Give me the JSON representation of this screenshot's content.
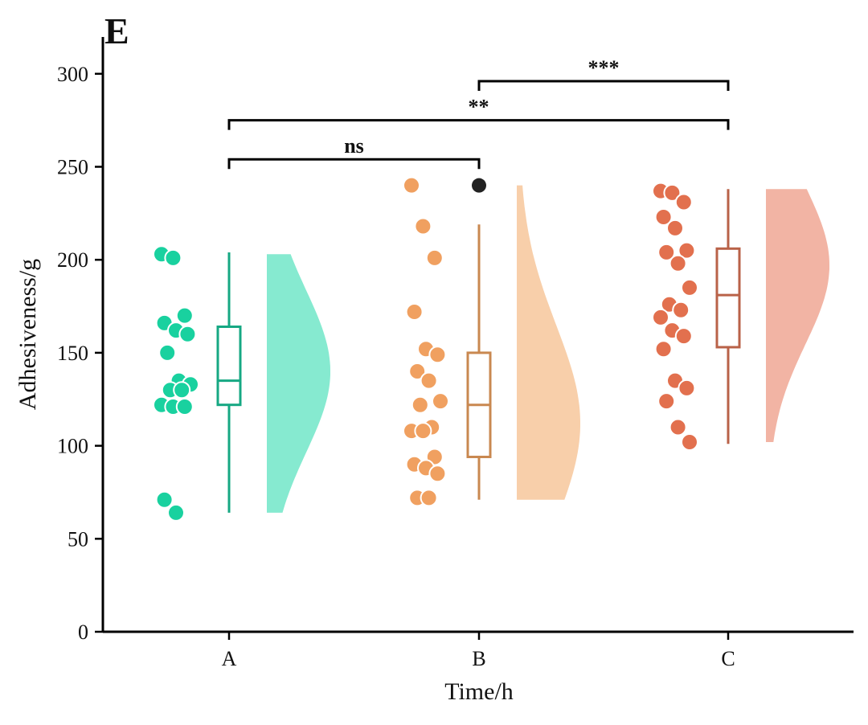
{
  "chart_data": {
    "type": "raincloud",
    "panel_label": "E",
    "xlabel": "Time/h",
    "ylabel": "Adhesiveness/g",
    "ylim": [
      0,
      320
    ],
    "yticks": [
      0,
      50,
      100,
      150,
      200,
      250,
      300
    ],
    "categories": [
      "A",
      "B",
      "C"
    ],
    "groups": [
      {
        "name": "A",
        "color_points": "#19d19f",
        "color_box": "#16a883",
        "color_cloud": "#86ead0",
        "points": [
          203,
          201,
          170,
          166,
          162,
          160,
          150,
          135,
          133,
          130,
          130,
          122,
          121,
          121,
          71,
          64
        ],
        "box": {
          "whisker_low": 64,
          "q1": 122,
          "median": 135,
          "q3": 164,
          "whisker_high": 204
        },
        "outliers": [],
        "density": {
          "min": 64,
          "max": 203,
          "peak": 140
        }
      },
      {
        "name": "B",
        "color_points": "#f0a060",
        "color_box": "#c98850",
        "color_cloud": "#f8cfaa",
        "points": [
          240,
          218,
          201,
          172,
          152,
          149,
          140,
          135,
          124,
          122,
          110,
          108,
          108,
          94,
          90,
          88,
          85,
          72,
          72
        ],
        "box": {
          "whisker_low": 71,
          "q1": 94,
          "median": 122,
          "q3": 150,
          "whisker_high": 219
        },
        "outliers": [
          240
        ],
        "density": {
          "min": 71,
          "max": 240,
          "peak": 112
        }
      },
      {
        "name": "C",
        "color_points": "#e2704e",
        "color_box": "#b96248",
        "color_cloud": "#f2b4a4",
        "points": [
          237,
          236,
          231,
          223,
          217,
          205,
          204,
          198,
          185,
          176,
          173,
          169,
          162,
          159,
          152,
          135,
          131,
          124,
          110,
          102
        ],
        "box": {
          "whisker_low": 101,
          "q1": 153,
          "median": 181,
          "q3": 206,
          "whisker_high": 238
        },
        "outliers": [],
        "density": {
          "min": 102,
          "max": 238,
          "peak": 197
        }
      }
    ],
    "significance": [
      {
        "from": "A",
        "to": "B",
        "label": "ns",
        "y": 254
      },
      {
        "from": "A",
        "to": "C",
        "label": "**",
        "y": 275
      },
      {
        "from": "B",
        "to": "C",
        "label": "***",
        "y": 296
      }
    ],
    "outlier_color": "#222222"
  }
}
